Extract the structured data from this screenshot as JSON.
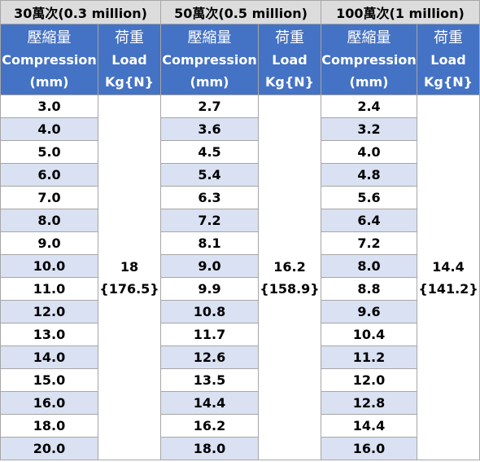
{
  "groups": [
    {
      "title": "30萬次(0.3 million)",
      "load_value": "18",
      "load_newton": "{176.5}",
      "compression": [
        "3.0",
        "4.0",
        "5.0",
        "6.0",
        "7.0",
        "8.0",
        "9.0",
        "10.0",
        "11.0",
        "12.0",
        "13.0",
        "14.0",
        "15.0",
        "16.0",
        "18.0",
        "20.0"
      ]
    },
    {
      "title": "50萬次(0.5 million)",
      "load_value": "16.2",
      "load_newton": "{158.9}",
      "compression": [
        "2.7",
        "3.6",
        "4.5",
        "5.4",
        "6.3",
        "7.2",
        "8.1",
        "9.0",
        "9.9",
        "10.8",
        "11.7",
        "12.6",
        "13.5",
        "14.4",
        "16.2",
        "18.0"
      ]
    },
    {
      "title": "100萬次(1 million)",
      "load_value": "14.4",
      "load_newton": "{141.2}",
      "compression": [
        "2.4",
        "3.2",
        "4.0",
        "4.8",
        "5.6",
        "6.4",
        "7.2",
        "8.0",
        "8.8",
        "9.6",
        "10.4",
        "11.2",
        "12.0",
        "12.8",
        "14.4",
        "16.0"
      ]
    }
  ],
  "headers": {
    "compression": {
      "zh": "壓縮量",
      "en": "Compression",
      "unit": "(mm)"
    },
    "load": {
      "zh": "荷重",
      "en": "Load",
      "unit": "Kg{N}"
    }
  },
  "colors": {
    "header_bg": "#4472c4",
    "group_bg": "#dcdcdc",
    "stripe": "#d9e1f2",
    "border": "#a6a6a6"
  }
}
